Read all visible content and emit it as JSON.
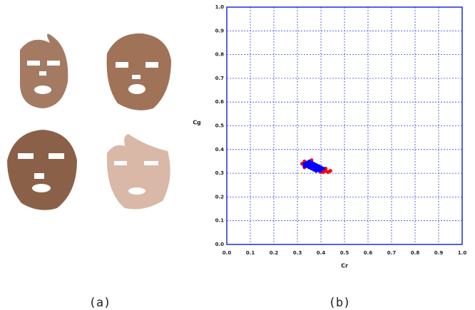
{
  "captions": [
    "(a)",
    "(b)"
  ],
  "chart_data": {
    "type": "scatter",
    "xlabel": "Cr",
    "ylabel": "Cg",
    "xlim": [
      0,
      1
    ],
    "ylim": [
      0,
      1
    ],
    "xticks": [
      {
        "value": 0,
        "label": "0.0"
      },
      0.1,
      0.2,
      0.3,
      0.4,
      0.5,
      0.6,
      0.7,
      0.8,
      0.9,
      {
        "value": 1,
        "label": "1.0"
      }
    ],
    "yticks": [
      {
        "value": 0,
        "label": "0.0"
      },
      0.1,
      0.2,
      0.3,
      0.4,
      0.5,
      0.6,
      0.7,
      0.8,
      0.9,
      {
        "value": 1,
        "label": "1.0"
      }
    ],
    "grid": true,
    "series": [
      {
        "color": "#ff0000",
        "x": [
          0.32,
          0.33,
          0.42,
          0.43,
          0.41,
          0.36,
          0.44,
          0.4,
          0.33,
          0.42
        ],
        "values": [
          0.34,
          0.35,
          0.31,
          0.305,
          0.305,
          0.355,
          0.31,
          0.305,
          0.325,
          0.32
        ]
      },
      {
        "color": "#0000ff",
        "x": [
          0.33,
          0.34,
          0.35,
          0.36,
          0.37,
          0.38,
          0.39,
          0.4,
          0.34,
          0.35,
          0.36,
          0.37,
          0.38,
          0.36,
          0.37,
          0.38,
          0.39,
          0.4,
          0.41,
          0.35,
          0.34,
          0.33,
          0.355,
          0.365,
          0.375,
          0.385,
          0.395,
          0.345
        ],
        "values": [
          0.34,
          0.345,
          0.34,
          0.335,
          0.33,
          0.325,
          0.32,
          0.315,
          0.33,
          0.325,
          0.32,
          0.315,
          0.31,
          0.345,
          0.34,
          0.335,
          0.33,
          0.325,
          0.32,
          0.35,
          0.335,
          0.33,
          0.33,
          0.325,
          0.32,
          0.315,
          0.31,
          0.34
        ]
      }
    ]
  }
}
